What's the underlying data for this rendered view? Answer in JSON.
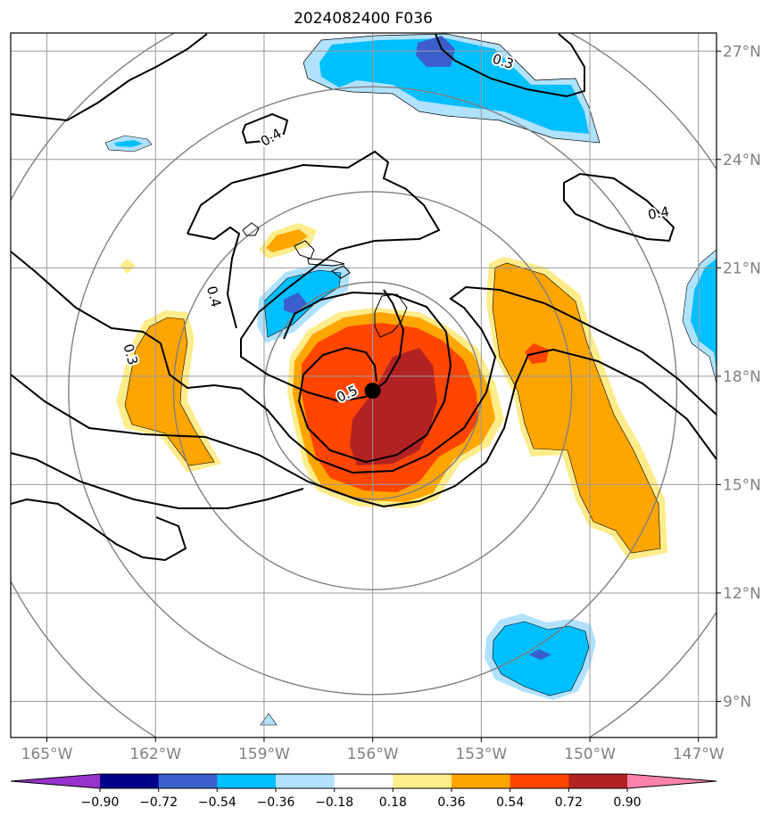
{
  "chart_data": {
    "type": "contour_map",
    "title": "2024082400 F036",
    "lon_range": [
      -166,
      -146.5
    ],
    "lat_range": [
      8,
      27.5
    ],
    "lon_ticks": [
      {
        "value": -165,
        "label": "165°W"
      },
      {
        "value": -162,
        "label": "162°W"
      },
      {
        "value": -159,
        "label": "159°W"
      },
      {
        "value": -156,
        "label": "156°W"
      },
      {
        "value": -153,
        "label": "153°W"
      },
      {
        "value": -150,
        "label": "150°W"
      },
      {
        "value": -147,
        "label": "147°W"
      }
    ],
    "lat_ticks": [
      {
        "value": 9,
        "label": "9°N"
      },
      {
        "value": 12,
        "label": "12°N"
      },
      {
        "value": 15,
        "label": "15°N"
      },
      {
        "value": 18,
        "label": "18°N"
      },
      {
        "value": 21,
        "label": "21°N"
      },
      {
        "value": 24,
        "label": "24°N"
      },
      {
        "value": 27,
        "label": "27°N"
      }
    ],
    "colorbar": {
      "levels": [
        -0.9,
        -0.72,
        -0.54,
        -0.36,
        -0.18,
        0.18,
        0.36,
        0.54,
        0.72,
        0.9
      ],
      "labels": [
        "−0.90",
        "−0.72",
        "−0.54",
        "−0.36",
        "−0.18",
        "0.18",
        "0.36",
        "0.54",
        "0.72",
        "0.90"
      ],
      "colors": [
        "#9932cc",
        "#00008b",
        "#3a5fcd",
        "#00bfff",
        "#b0e2ff",
        "#ffffff",
        "#ffec8b",
        "#ffa500",
        "#ff4500",
        "#b22222",
        "#ff82ab"
      ]
    },
    "storm_center": {
      "lon": -156.0,
      "lat": 17.6
    },
    "range_rings_deg": [
      3,
      5.5,
      8.4,
      11.3
    ],
    "contour_labels": [
      {
        "text": "0.4",
        "lon": -158.8,
        "lat": 24.6,
        "rot": -30
      },
      {
        "text": "0.3",
        "lon": -152.4,
        "lat": 26.7,
        "rot": 18
      },
      {
        "text": "0.4",
        "lon": -148.1,
        "lat": 22.5,
        "rot": -10
      },
      {
        "text": "0.4",
        "lon": -160.4,
        "lat": 20.2,
        "rot": 75
      },
      {
        "text": "0.3",
        "lon": -162.7,
        "lat": 18.6,
        "rot": 75
      },
      {
        "text": "0.5",
        "lon": -156.7,
        "lat": 17.5,
        "rot": -25
      }
    ]
  }
}
